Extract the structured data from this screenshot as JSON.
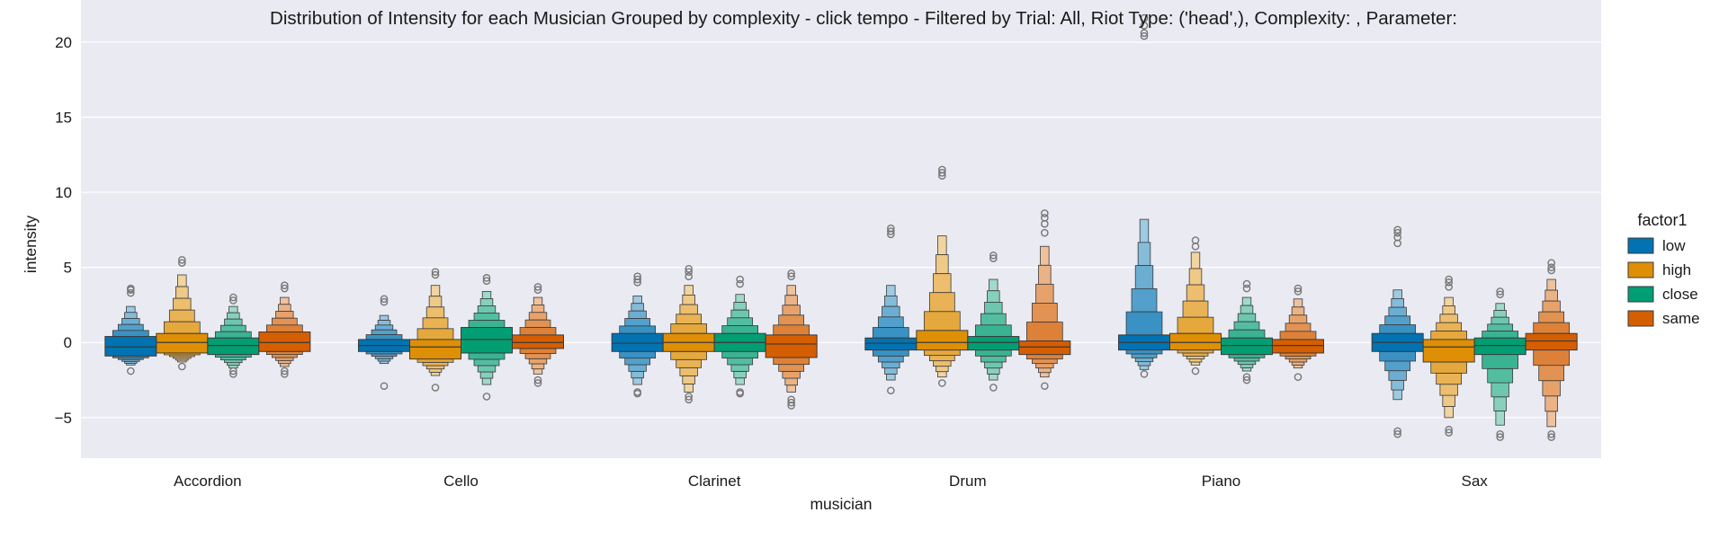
{
  "chart_data": {
    "type": "boxen",
    "title": "Distribution of Intensity for each Musician Grouped by complexity - click tempo - Filtered by Trial: All, Riot Type: ('head',), Complexity: , Parameter:",
    "xlabel": "musician",
    "ylabel": "intensity",
    "ylim": [
      -7.7,
      22.8
    ],
    "yticks": [
      -5,
      0,
      5,
      10,
      15,
      20
    ],
    "ytick_labels": [
      "−5",
      "0",
      "5",
      "10",
      "15",
      "20"
    ],
    "grid": true,
    "legend_title": "factor1",
    "legend_position": "right",
    "categories": [
      "Accordion",
      "Cello",
      "Clarinet",
      "Drum",
      "Piano",
      "Sax"
    ],
    "series": [
      {
        "name": "low",
        "color": "#0173b2",
        "boxes": [
          {
            "q1": -0.9,
            "median": -0.3,
            "q3": 0.4,
            "min": -1.5,
            "max": 2.4,
            "outliers": [
              -1.9,
              3.3,
              3.5,
              3.6
            ]
          },
          {
            "q1": -0.6,
            "median": -0.2,
            "q3": 0.2,
            "min": -1.4,
            "max": 1.8,
            "outliers": [
              -2.9,
              2.7,
              2.9
            ]
          },
          {
            "q1": -0.6,
            "median": -0.05,
            "q3": 0.6,
            "min": -2.8,
            "max": 3.1,
            "outliers": [
              -3.4,
              -3.3,
              4.0,
              4.2,
              4.4
            ]
          },
          {
            "q1": -0.5,
            "median": -0.05,
            "q3": 0.3,
            "min": -2.5,
            "max": 3.8,
            "outliers": [
              -3.2,
              7.2,
              7.4,
              7.6
            ]
          },
          {
            "q1": -0.5,
            "median": 0.0,
            "q3": 0.5,
            "min": -1.8,
            "max": 8.2,
            "outliers": [
              -2.1,
              20.4,
              20.6,
              21.1,
              21.6
            ]
          },
          {
            "q1": -0.6,
            "median": 0.0,
            "q3": 0.6,
            "min": -3.8,
            "max": 3.5,
            "outliers": [
              -6.1,
              -5.9,
              6.6,
              7.0,
              7.3,
              7.5
            ]
          }
        ]
      },
      {
        "name": "high",
        "color": "#de8f05",
        "boxes": [
          {
            "q1": -0.7,
            "median": 0.0,
            "q3": 0.6,
            "min": -1.3,
            "max": 4.5,
            "outliers": [
              -1.6,
              5.3,
              5.5
            ]
          },
          {
            "q1": -1.1,
            "median": -0.3,
            "q3": 0.2,
            "min": -2.2,
            "max": 3.8,
            "outliers": [
              -3.0,
              4.5,
              4.7
            ]
          },
          {
            "q1": -0.6,
            "median": 0.0,
            "q3": 0.6,
            "min": -3.3,
            "max": 3.8,
            "outliers": [
              -3.8,
              -3.6,
              4.4,
              4.7,
              4.9
            ]
          },
          {
            "q1": -0.5,
            "median": 0.0,
            "q3": 0.8,
            "min": -2.3,
            "max": 7.1,
            "outliers": [
              -2.7,
              11.1,
              11.3,
              11.5
            ]
          },
          {
            "q1": -0.5,
            "median": 0.0,
            "q3": 0.6,
            "min": -1.5,
            "max": 6.0,
            "outliers": [
              -1.9,
              6.4,
              6.8
            ]
          },
          {
            "q1": -1.3,
            "median": -0.3,
            "q3": 0.2,
            "min": -5.0,
            "max": 3.0,
            "outliers": [
              -6.0,
              -5.8,
              3.7,
              4.0,
              4.2
            ]
          }
        ]
      },
      {
        "name": "close",
        "color": "#029e73",
        "boxes": [
          {
            "q1": -0.8,
            "median": -0.2,
            "q3": 0.3,
            "min": -1.7,
            "max": 2.4,
            "outliers": [
              -2.1,
              -1.9,
              2.8,
              3.0
            ]
          },
          {
            "q1": -0.7,
            "median": 0.2,
            "q3": 1.0,
            "min": -2.8,
            "max": 3.4,
            "outliers": [
              -3.6,
              4.1,
              4.3
            ]
          },
          {
            "q1": -0.6,
            "median": 0.0,
            "q3": 0.6,
            "min": -2.8,
            "max": 3.2,
            "outliers": [
              -3.4,
              -3.3,
              3.9,
              4.2
            ]
          },
          {
            "q1": -0.5,
            "median": 0.0,
            "q3": 0.4,
            "min": -2.5,
            "max": 4.2,
            "outliers": [
              -3.0,
              5.6,
              5.8
            ]
          },
          {
            "q1": -0.8,
            "median": -0.2,
            "q3": 0.3,
            "min": -1.9,
            "max": 3.0,
            "outliers": [
              -2.5,
              -2.3,
              3.6,
              3.9
            ]
          },
          {
            "q1": -0.8,
            "median": -0.2,
            "q3": 0.3,
            "min": -5.5,
            "max": 2.6,
            "outliers": [
              -6.3,
              -6.1,
              3.2,
              3.4
            ]
          }
        ]
      },
      {
        "name": "same",
        "color": "#d55e00",
        "boxes": [
          {
            "q1": -0.6,
            "median": 0.0,
            "q3": 0.7,
            "min": -1.6,
            "max": 3.0,
            "outliers": [
              -2.1,
              -1.9,
              3.6,
              3.8
            ]
          },
          {
            "q1": -0.4,
            "median": 0.0,
            "q3": 0.5,
            "min": -2.1,
            "max": 3.0,
            "outliers": [
              -2.7,
              -2.5,
              3.5,
              3.7
            ]
          },
          {
            "q1": -1.0,
            "median": -0.1,
            "q3": 0.5,
            "min": -3.3,
            "max": 3.8,
            "outliers": [
              -4.2,
              -4.0,
              -3.8,
              4.4,
              4.6
            ]
          },
          {
            "q1": -0.8,
            "median": -0.3,
            "q3": 0.1,
            "min": -2.3,
            "max": 6.4,
            "outliers": [
              -2.9,
              7.3,
              7.9,
              8.3,
              8.6
            ]
          },
          {
            "q1": -0.7,
            "median": -0.2,
            "q3": 0.2,
            "min": -1.7,
            "max": 2.9,
            "outliers": [
              -2.3,
              3.4,
              3.6
            ]
          },
          {
            "q1": -0.5,
            "median": 0.1,
            "q3": 0.6,
            "min": -5.6,
            "max": 4.2,
            "outliers": [
              -6.3,
              -6.1,
              4.8,
              5.0,
              5.3
            ]
          }
        ]
      }
    ]
  }
}
